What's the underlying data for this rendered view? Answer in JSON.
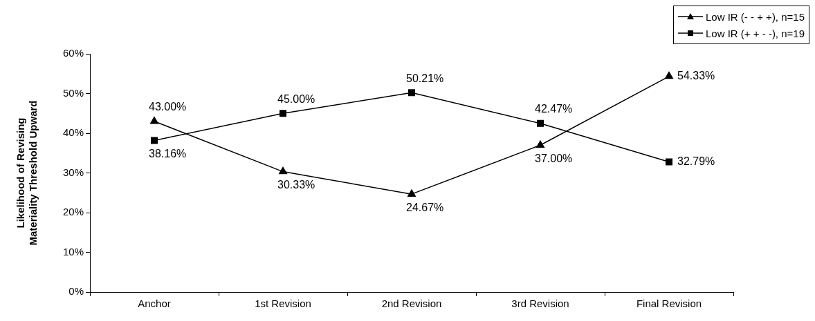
{
  "chart_data": {
    "type": "line",
    "ylabel": "Likelihood of Revising\nMateriality Threshold Upward",
    "categories": [
      "Anchor",
      "1st Revision",
      "2nd Revision",
      "3rd Revision",
      "Final Revision"
    ],
    "series": [
      {
        "name": "Low IR (- - + +), n=15",
        "color": "#000000",
        "marker": "triangle",
        "values": [
          43.0,
          30.33,
          24.67,
          37.0,
          54.33
        ],
        "value_labels": [
          "43.00%",
          "30.33%",
          "24.67%",
          "37.00%",
          "54.33%"
        ]
      },
      {
        "name": "Low IR (+ + - -), n=19",
        "color": "#000000",
        "marker": "square",
        "values": [
          38.16,
          45.0,
          50.21,
          42.47,
          32.79
        ],
        "value_labels": [
          "38.16%",
          "45.00%",
          "50.21%",
          "42.47%",
          "32.79%"
        ]
      }
    ],
    "ylim": [
      0,
      60
    ],
    "yticks": [
      {
        "value": 0,
        "label": "0%"
      },
      {
        "value": 10,
        "label": "10%"
      },
      {
        "value": 20,
        "label": "20%"
      },
      {
        "value": 30,
        "label": "30%"
      },
      {
        "value": 40,
        "label": "40%"
      },
      {
        "value": 50,
        "label": "50%"
      },
      {
        "value": 60,
        "label": "60%"
      }
    ],
    "grid": false,
    "legend": "top right",
    "line_style": "solid"
  }
}
